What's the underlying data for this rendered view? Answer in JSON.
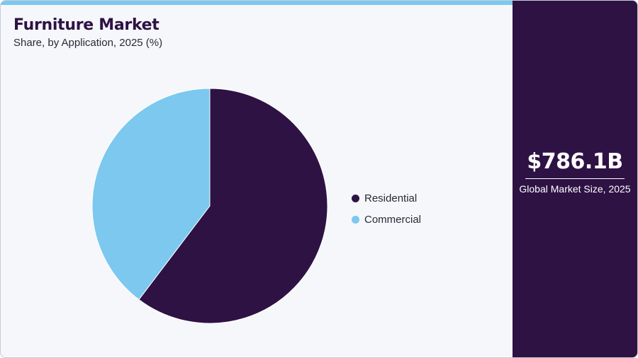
{
  "header": {
    "title": "Furniture Market",
    "subtitle": "Share, by Application, 2025 (%)"
  },
  "colors": {
    "accent_strip": "#7cc8ef",
    "panel_background": "#2e1244",
    "chart_background": "#f5f7fb"
  },
  "chart_data": {
    "type": "pie",
    "title": "Furniture Market",
    "subtitle": "Share, by Application, 2025 (%)",
    "legend_position": "right",
    "slices": [
      {
        "label": "Residential",
        "value": 60.3,
        "color": "#2e1244"
      },
      {
        "label": "Commercial",
        "value": 39.7,
        "color": "#7cc8ef"
      }
    ]
  },
  "side_panel": {
    "value": "$786.1B",
    "label": "Global Market Size, 2025"
  }
}
